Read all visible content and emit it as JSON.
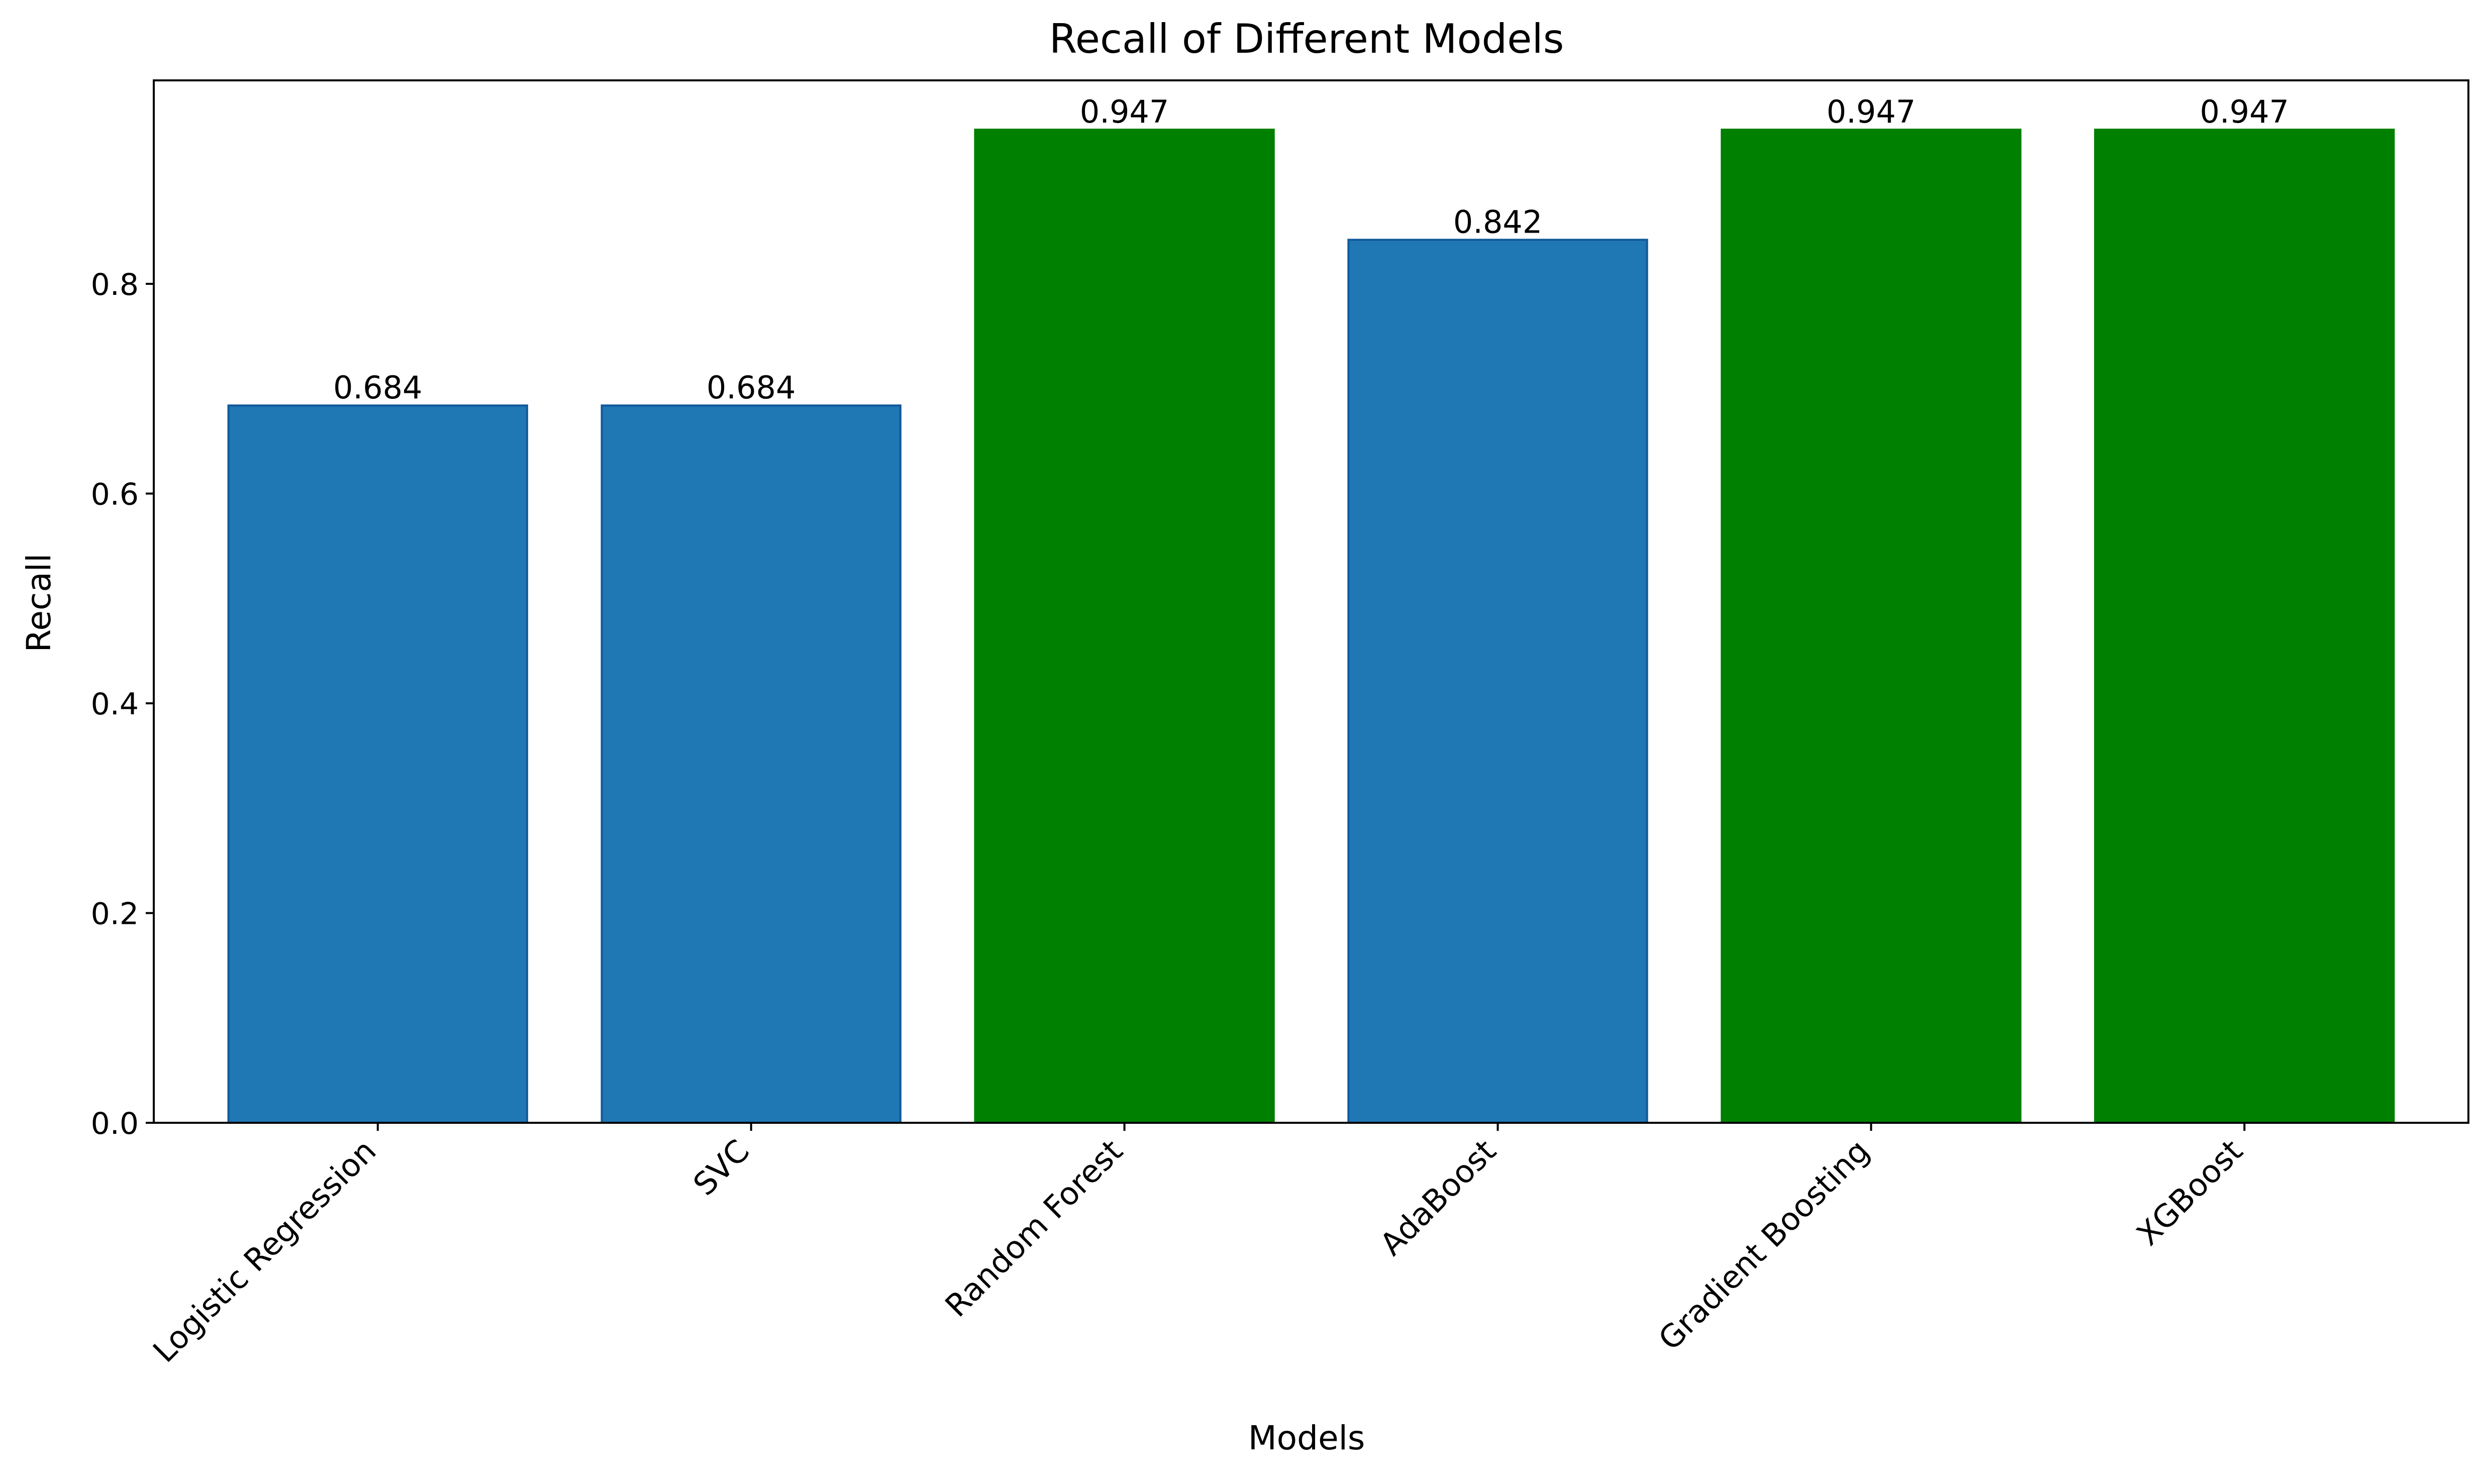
{
  "chart_data": {
    "type": "bar",
    "title": "Recall of Different Models",
    "xlabel": "Models",
    "ylabel": "Recall",
    "categories": [
      "Logistic Regression",
      "SVC",
      "Random Forest",
      "AdaBoost",
      "Gradient Boosting",
      "XGBoost"
    ],
    "values": [
      0.684,
      0.684,
      0.947,
      0.842,
      0.947,
      0.947
    ],
    "value_labels": [
      "0.684",
      "0.684",
      "0.947",
      "0.842",
      "0.947",
      "0.947"
    ],
    "bar_colors": [
      "#1f77b4",
      "#1f77b4",
      "#008000",
      "#1f77b4",
      "#008000",
      "#008000"
    ],
    "ylim": [
      0,
      0.994
    ],
    "yticks": [
      0.0,
      0.2,
      0.4,
      0.6,
      0.8
    ],
    "ytick_labels": [
      "0.0",
      "0.2",
      "0.4",
      "0.6",
      "0.8"
    ],
    "grid": false,
    "legend": "none"
  }
}
